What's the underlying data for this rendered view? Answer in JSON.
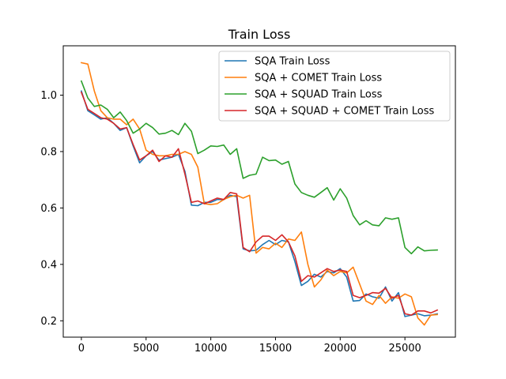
{
  "chart_data": {
    "type": "line",
    "title": "Train Loss",
    "xlabel": "",
    "ylabel": "",
    "xlim": [
      -1400,
      28900
    ],
    "ylim": [
      0.142,
      1.175
    ],
    "xticks": [
      0,
      5000,
      10000,
      15000,
      20000,
      25000
    ],
    "yticks": [
      0.2,
      0.4,
      0.6,
      0.8,
      1.0
    ],
    "xtick_labels": [
      "0",
      "5000",
      "10000",
      "15000",
      "20000",
      "25000"
    ],
    "ytick_labels": [
      "0.2",
      "0.4",
      "0.6",
      "0.8",
      "1.0"
    ],
    "grid": false,
    "legend_position": "upper right",
    "series": [
      {
        "name": "SQA Train Loss",
        "color": "#1f77b4",
        "x": [
          0,
          500,
          1000,
          1500,
          2000,
          2500,
          3000,
          3500,
          4000,
          4500,
          5000,
          5500,
          6000,
          6500,
          7000,
          7500,
          8000,
          8500,
          9000,
          9500,
          10000,
          10500,
          11000,
          11500,
          12000,
          12500,
          13000,
          13500,
          14000,
          14500,
          15000,
          15500,
          16000,
          16500,
          17000,
          17500,
          18000,
          18500,
          19000,
          19500,
          20000,
          20500,
          21000,
          21500,
          22000,
          22500,
          23000,
          23500,
          24000,
          24500,
          25000,
          25500,
          26000,
          26500,
          27000,
          27500
        ],
        "y": [
          1.015,
          0.945,
          0.93,
          0.915,
          0.92,
          0.9,
          0.875,
          0.885,
          0.82,
          0.76,
          0.785,
          0.8,
          0.77,
          0.775,
          0.78,
          0.79,
          0.73,
          0.61,
          0.608,
          0.62,
          0.62,
          0.63,
          0.63,
          0.645,
          0.64,
          0.455,
          0.448,
          0.45,
          0.47,
          0.485,
          0.47,
          0.485,
          0.48,
          0.41,
          0.325,
          0.34,
          0.365,
          0.355,
          0.375,
          0.37,
          0.385,
          0.355,
          0.27,
          0.272,
          0.295,
          0.285,
          0.28,
          0.32,
          0.27,
          0.3,
          0.215,
          0.22,
          0.225,
          0.218,
          0.22,
          0.225
        ]
      },
      {
        "name": "SQA + COMET Train Loss",
        "color": "#ff7f0e",
        "x": [
          0,
          500,
          1000,
          1500,
          2000,
          2500,
          3000,
          3500,
          4000,
          4500,
          5000,
          5500,
          6000,
          6500,
          7000,
          7500,
          8000,
          8500,
          9000,
          9500,
          10000,
          10500,
          11000,
          11500,
          12000,
          12500,
          13000,
          13500,
          14000,
          14500,
          15000,
          15500,
          16000,
          16500,
          17000,
          17500,
          18000,
          18500,
          19000,
          19500,
          20000,
          20500,
          21000,
          21500,
          22000,
          22500,
          23000,
          23500,
          24000,
          24500,
          25000,
          25500,
          26000,
          26500,
          27000,
          27500
        ],
        "y": [
          1.115,
          1.11,
          1.015,
          0.945,
          0.92,
          0.915,
          0.915,
          0.895,
          0.915,
          0.88,
          0.805,
          0.79,
          0.785,
          0.785,
          0.79,
          0.79,
          0.8,
          0.79,
          0.745,
          0.615,
          0.612,
          0.615,
          0.63,
          0.64,
          0.645,
          0.635,
          0.645,
          0.44,
          0.46,
          0.455,
          0.475,
          0.46,
          0.49,
          0.485,
          0.515,
          0.4,
          0.32,
          0.345,
          0.38,
          0.36,
          0.375,
          0.37,
          0.39,
          0.33,
          0.27,
          0.258,
          0.29,
          0.262,
          0.285,
          0.28,
          0.295,
          0.285,
          0.21,
          0.185,
          0.22,
          0.222
        ]
      },
      {
        "name": "SQA + SQUAD Train Loss",
        "color": "#2ca02c",
        "x": [
          0,
          500,
          1000,
          1500,
          2000,
          2500,
          3000,
          3500,
          4000,
          4500,
          5000,
          5500,
          6000,
          6500,
          7000,
          7500,
          8000,
          8500,
          9000,
          9500,
          10000,
          10500,
          11000,
          11500,
          12000,
          12500,
          13000,
          13500,
          14000,
          14500,
          15000,
          15500,
          16000,
          16500,
          17000,
          17500,
          18000,
          18500,
          19000,
          19500,
          20000,
          20500,
          21000,
          21500,
          22000,
          22500,
          23000,
          23500,
          24000,
          24500,
          25000,
          25500,
          26000,
          26500,
          27000,
          27500
        ],
        "y": [
          1.05,
          0.99,
          0.96,
          0.965,
          0.95,
          0.92,
          0.94,
          0.91,
          0.865,
          0.88,
          0.9,
          0.885,
          0.862,
          0.865,
          0.875,
          0.86,
          0.9,
          0.872,
          0.793,
          0.805,
          0.82,
          0.818,
          0.823,
          0.79,
          0.81,
          0.705,
          0.716,
          0.72,
          0.78,
          0.768,
          0.77,
          0.755,
          0.765,
          0.685,
          0.655,
          0.645,
          0.638,
          0.655,
          0.672,
          0.628,
          0.668,
          0.635,
          0.573,
          0.54,
          0.555,
          0.54,
          0.537,
          0.565,
          0.56,
          0.565,
          0.46,
          0.438,
          0.462,
          0.448,
          0.45,
          0.451
        ]
      },
      {
        "name": "SQA + SQUAD + COMET Train Loss",
        "color": "#d62728",
        "x": [
          0,
          500,
          1000,
          1500,
          2000,
          2500,
          3000,
          3500,
          4000,
          4500,
          5000,
          5500,
          6000,
          6500,
          7000,
          7500,
          8000,
          8500,
          9000,
          9500,
          10000,
          10500,
          11000,
          11500,
          12000,
          12500,
          13000,
          13500,
          14000,
          14500,
          15000,
          15500,
          16000,
          16500,
          17000,
          17500,
          18000,
          18500,
          19000,
          19500,
          20000,
          20500,
          21000,
          21500,
          22000,
          22500,
          23000,
          23500,
          24000,
          24500,
          25000,
          25500,
          26000,
          26500,
          27000,
          27500
        ],
        "y": [
          1.01,
          0.95,
          0.935,
          0.92,
          0.915,
          0.9,
          0.88,
          0.885,
          0.825,
          0.77,
          0.785,
          0.805,
          0.765,
          0.785,
          0.78,
          0.81,
          0.72,
          0.62,
          0.625,
          0.615,
          0.625,
          0.635,
          0.63,
          0.655,
          0.65,
          0.46,
          0.445,
          0.48,
          0.5,
          0.5,
          0.485,
          0.505,
          0.48,
          0.43,
          0.34,
          0.36,
          0.355,
          0.37,
          0.385,
          0.375,
          0.38,
          0.375,
          0.29,
          0.282,
          0.29,
          0.3,
          0.298,
          0.315,
          0.28,
          0.29,
          0.225,
          0.22,
          0.235,
          0.235,
          0.228,
          0.238
        ]
      }
    ]
  }
}
